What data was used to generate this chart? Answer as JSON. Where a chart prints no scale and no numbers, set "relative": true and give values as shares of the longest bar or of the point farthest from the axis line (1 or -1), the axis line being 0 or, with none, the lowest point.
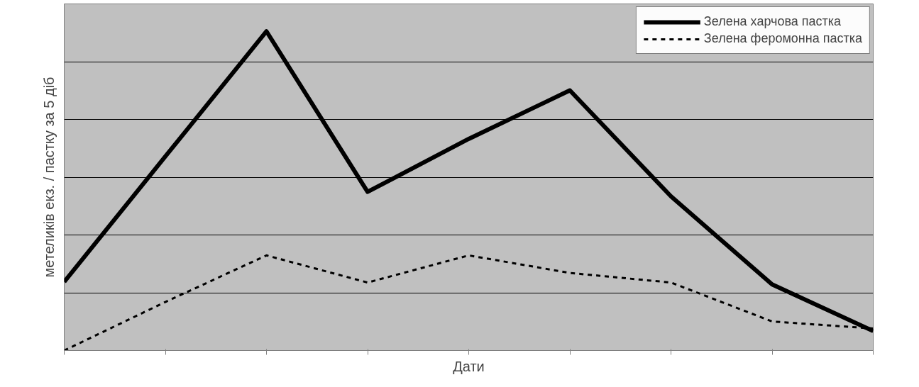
{
  "chart_data": {
    "type": "line",
    "relative": true,
    "xlabel": "Дати",
    "ylabel": "метеликів екз. / пастку за 5 діб",
    "categories": [
      null,
      null,
      null,
      null,
      null,
      null,
      null,
      null,
      null
    ],
    "series": [
      {
        "name": "Зелена харчова пастка",
        "color": "#000000",
        "line_style": "solid",
        "values": [
          0.215,
          0.608,
          1,
          0.497,
          0.663,
          0.815,
          0.483,
          0.207,
          0.061
        ]
      },
      {
        "name": "Зелена феромонна пастка",
        "color": "#000000",
        "line_style": "dashed",
        "values": [
          0,
          0.152,
          0.298,
          0.213,
          0.298,
          0.243,
          0.213,
          0.091,
          0.069
        ]
      }
    ],
    "grid": "y",
    "legend": "top right",
    "marker": "none"
  }
}
